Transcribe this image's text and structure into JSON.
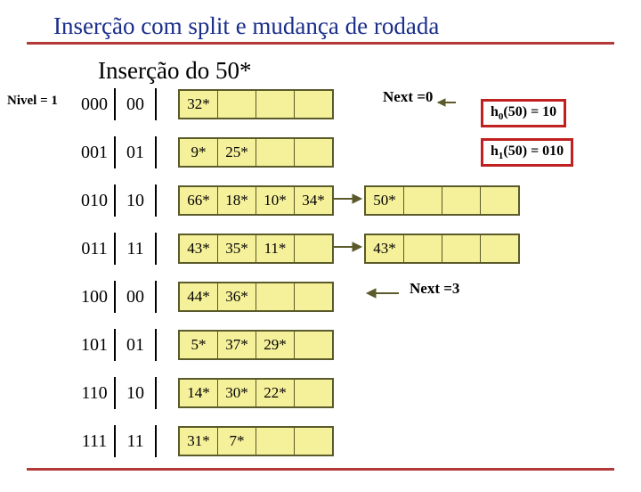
{
  "title1": "Inserção com split e mudança de rodada",
  "title2": "Inserção do 50*",
  "levelLabel": "Nivel = 1",
  "next0": "Next =0",
  "next3": "Next =3",
  "h0": {
    "prefix": "h",
    "sub": "0",
    "rest": "(50) = 10"
  },
  "h1": {
    "prefix": "h",
    "sub": "1",
    "rest": "(50) = 010"
  },
  "rows": [
    {
      "addr": "000",
      "suf": "00",
      "bucket": [
        "32*",
        "",
        "",
        ""
      ]
    },
    {
      "addr": "001",
      "suf": "01",
      "bucket": [
        "9*",
        "25*",
        "",
        ""
      ]
    },
    {
      "addr": "010",
      "suf": "10",
      "bucket": [
        "66*",
        "18*",
        "10*",
        "34*"
      ],
      "overflow": [
        "50*",
        "",
        "",
        ""
      ]
    },
    {
      "addr": "011",
      "suf": "11",
      "bucket": [
        "43*",
        "35*",
        "11*",
        ""
      ],
      "overflow": [
        "43*",
        "",
        "",
        ""
      ]
    },
    {
      "addr": "100",
      "suf": "00",
      "bucket": [
        "44*",
        "36*",
        "",
        ""
      ]
    },
    {
      "addr": "101",
      "suf": "01",
      "bucket": [
        "5*",
        "37*",
        "29*",
        ""
      ]
    },
    {
      "addr": "110",
      "suf": "10",
      "bucket": [
        "14*",
        "30*",
        "22*",
        ""
      ]
    },
    {
      "addr": "111",
      "suf": "11",
      "bucket": [
        "31*",
        "7*",
        "",
        ""
      ]
    }
  ]
}
